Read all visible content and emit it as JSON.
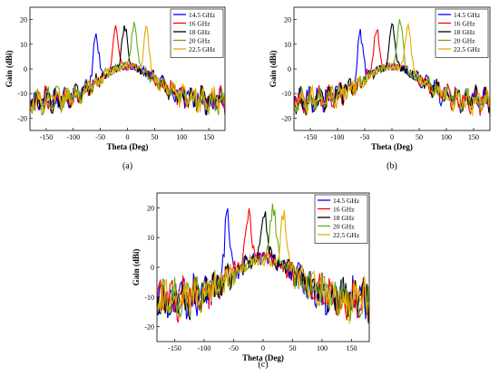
{
  "chart_data": [
    {
      "type": "line",
      "panel_label": "(a)",
      "xlabel": "Theta (Deg)",
      "ylabel": "Gain (dBi)",
      "xlim": [
        -180,
        180
      ],
      "ylim": [
        -25,
        25
      ],
      "xticks": [
        -150,
        -100,
        -50,
        0,
        50,
        100,
        150
      ],
      "yticks": [
        -20,
        -10,
        0,
        10,
        20
      ],
      "legend_position": "top-right",
      "grid": false,
      "series": [
        {
          "name": "14.5 GHz",
          "color": "#0000ff",
          "peak_theta": -58,
          "peak_gain": 15
        },
        {
          "name": "16 GHz",
          "color": "#ff0000",
          "peak_theta": -22,
          "peak_gain": 17
        },
        {
          "name": "18 GHz",
          "color": "#000000",
          "peak_theta": -5,
          "peak_gain": 17
        },
        {
          "name": "20 GHz",
          "color": "#66aa22",
          "peak_theta": 12,
          "peak_gain": 18
        },
        {
          "name": "22.5 GHz",
          "color": "#e8a800",
          "peak_theta": 35,
          "peak_gain": 17
        }
      ]
    },
    {
      "type": "line",
      "panel_label": "(b)",
      "xlabel": "Theta (Deg)",
      "ylabel": "Gain (dBi)",
      "xlim": [
        -180,
        180
      ],
      "ylim": [
        -25,
        25
      ],
      "xticks": [
        -150,
        -100,
        -50,
        0,
        50,
        100,
        150
      ],
      "yticks": [
        -20,
        -10,
        0,
        10,
        20
      ],
      "legend_position": "top-right",
      "grid": false,
      "series": [
        {
          "name": "14.5 GHz",
          "color": "#0000ff",
          "peak_theta": -58,
          "peak_gain": 15
        },
        {
          "name": "16 GHz",
          "color": "#ff0000",
          "peak_theta": -28,
          "peak_gain": 16
        },
        {
          "name": "18 GHz",
          "color": "#000000",
          "peak_theta": 0,
          "peak_gain": 18
        },
        {
          "name": "20 GHz",
          "color": "#66aa22",
          "peak_theta": 15,
          "peak_gain": 19
        },
        {
          "name": "22.5 GHz",
          "color": "#e8a800",
          "peak_theta": 30,
          "peak_gain": 18
        }
      ]
    },
    {
      "type": "line",
      "panel_label": "(c)",
      "xlabel": "Theta (Deg)",
      "ylabel": "Gain (dBi)",
      "xlim": [
        -180,
        180
      ],
      "ylim": [
        -25,
        25
      ],
      "xticks": [
        -150,
        -100,
        -50,
        0,
        50,
        100,
        150
      ],
      "yticks": [
        -20,
        -10,
        0,
        10,
        20
      ],
      "legend_position": "top-right",
      "grid": false,
      "series": [
        {
          "name": "14.5 GHz",
          "color": "#0000ff",
          "peak_theta": -60,
          "peak_gain": 17
        },
        {
          "name": "16 GHz",
          "color": "#ff0000",
          "peak_theta": -25,
          "peak_gain": 18
        },
        {
          "name": "18 GHz",
          "color": "#000000",
          "peak_theta": 2,
          "peak_gain": 18
        },
        {
          "name": "20 GHz",
          "color": "#66aa22",
          "peak_theta": 17,
          "peak_gain": 20
        },
        {
          "name": "22.5 GHz",
          "color": "#e8a800",
          "peak_theta": 35,
          "peak_gain": 19
        }
      ]
    }
  ]
}
